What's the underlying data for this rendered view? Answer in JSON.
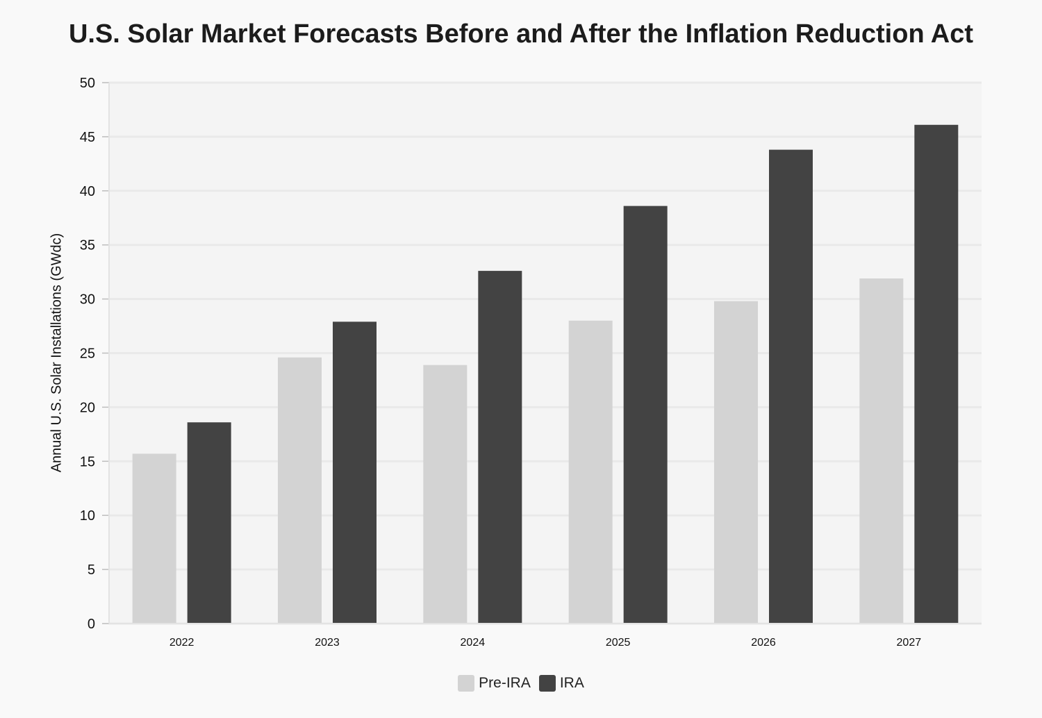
{
  "chart_data": {
    "type": "bar",
    "title": "U.S. Solar Market Forecasts Before and After the Inflation Reduction Act",
    "xlabel": "",
    "ylabel": "Annual U.S. Solar Installations (GWdc)",
    "categories": [
      "2022",
      "2023",
      "2024",
      "2025",
      "2026",
      "2027"
    ],
    "series": [
      {
        "name": "Pre-IRA",
        "color": "#d3d3d3",
        "values": [
          15.7,
          24.6,
          23.9,
          28.0,
          29.8,
          31.9
        ]
      },
      {
        "name": "IRA",
        "color": "#434343",
        "values": [
          18.6,
          27.9,
          32.6,
          38.6,
          43.8,
          46.1
        ]
      }
    ],
    "ylim": [
      0,
      50
    ],
    "yticks": [
      "0",
      "5",
      "10",
      "15",
      "20",
      "25",
      "30",
      "35",
      "40",
      "45",
      "50"
    ],
    "grid": true,
    "legend": "bottom-center"
  }
}
